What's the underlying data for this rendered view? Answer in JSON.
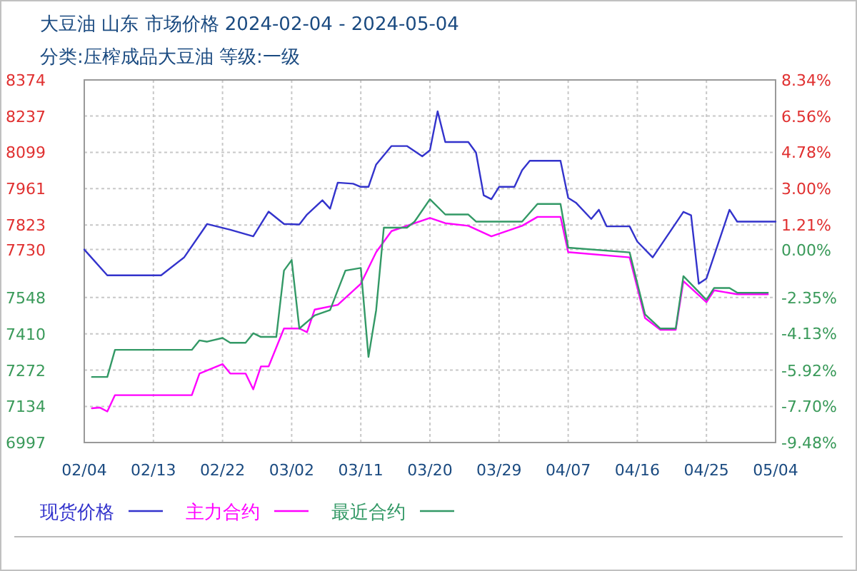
{
  "chart_data": {
    "type": "line",
    "title": "大豆油 山东 市场价格 2024-02-04 - 2024-05-04",
    "subtitle": "分类:压榨成品大豆油 等级:一级",
    "xlim": [
      "2024-02-04",
      "2024-05-04"
    ],
    "xticks": [
      {
        "value": "2024-02-04",
        "label": "02/04"
      },
      {
        "value": "2024-02-13",
        "label": "02/13"
      },
      {
        "value": "2024-02-22",
        "label": "02/22"
      },
      {
        "value": "2024-03-02",
        "label": "03/02"
      },
      {
        "value": "2024-03-11",
        "label": "03/11"
      },
      {
        "value": "2024-03-20",
        "label": "03/20"
      },
      {
        "value": "2024-03-29",
        "label": "03/29"
      },
      {
        "value": "2024-04-07",
        "label": "04/07"
      },
      {
        "value": "2024-04-16",
        "label": "04/16"
      },
      {
        "value": "2024-04-25",
        "label": "04/25"
      },
      {
        "value": "2024-05-04",
        "label": "05/04"
      }
    ],
    "ylim": [
      6997,
      8374
    ],
    "yticks": [
      6997,
      7134,
      7272,
      7410,
      7548,
      7730,
      7823,
      7961,
      8099,
      8237,
      8374
    ],
    "y2lim": [
      -9.48,
      8.34
    ],
    "y2ticks": [
      {
        "value": -9.48,
        "label": "-9.48%"
      },
      {
        "value": -7.7,
        "label": "-7.70%"
      },
      {
        "value": -5.92,
        "label": "-5.92%"
      },
      {
        "value": -4.13,
        "label": "-4.13%"
      },
      {
        "value": -2.35,
        "label": "-2.35%"
      },
      {
        "value": 0,
        "label": "0.00%"
      },
      {
        "value": 1.21,
        "label": "1.21%"
      },
      {
        "value": 3.0,
        "label": "3.00%"
      },
      {
        "value": 4.78,
        "label": "4.78%"
      },
      {
        "value": 6.56,
        "label": "6.56%"
      },
      {
        "value": 8.34,
        "label": "8.34%"
      }
    ],
    "grid": true,
    "legend": "bottom",
    "series": [
      {
        "name": "现货价格",
        "color": "#3333cc",
        "x": [
          "2024-02-04",
          "2024-02-07",
          "2024-02-14",
          "2024-02-17",
          "2024-02-20",
          "2024-02-23",
          "2024-02-26",
          "2024-02-28",
          "2024-03-01",
          "2024-03-03",
          "2024-03-04",
          "2024-03-06",
          "2024-03-07",
          "2024-03-08",
          "2024-03-10",
          "2024-03-11",
          "2024-03-12",
          "2024-03-13",
          "2024-03-15",
          "2024-03-17",
          "2024-03-19",
          "2024-03-20",
          "2024-03-21",
          "2024-03-22",
          "2024-03-25",
          "2024-03-26",
          "2024-03-27",
          "2024-03-28",
          "2024-03-29",
          "2024-03-31",
          "2024-04-01",
          "2024-04-02",
          "2024-04-06",
          "2024-04-07",
          "2024-04-08",
          "2024-04-10",
          "2024-04-11",
          "2024-04-12",
          "2024-04-15",
          "2024-04-16",
          "2024-04-18",
          "2024-04-22",
          "2024-04-23",
          "2024-04-24",
          "2024-04-25",
          "2024-04-28",
          "2024-04-29",
          "2024-05-04"
        ],
        "values": [
          7730,
          7632,
          7632,
          7700,
          7827,
          7805,
          7780,
          7874,
          7827,
          7825,
          7863,
          7917,
          7885,
          7984,
          7980,
          7968,
          7968,
          8053,
          8123,
          8123,
          8084,
          8107,
          8255,
          8138,
          8138,
          8098,
          7936,
          7921,
          7968,
          7968,
          8031,
          8067,
          8067,
          7926,
          7908,
          7846,
          7881,
          7818,
          7818,
          7760,
          7700,
          7873,
          7860,
          7600,
          7620,
          7881,
          7836,
          7836
        ]
      },
      {
        "name": "主力合约",
        "color": "#ff00ff",
        "x": [
          "2024-02-05",
          "2024-02-06",
          "2024-02-07",
          "2024-02-08",
          "2024-02-18",
          "2024-02-19",
          "2024-02-22",
          "2024-02-23",
          "2024-02-25",
          "2024-02-26",
          "2024-02-27",
          "2024-02-28",
          "2024-03-01",
          "2024-03-03",
          "2024-03-04",
          "2024-03-05",
          "2024-03-08",
          "2024-03-11",
          "2024-03-13",
          "2024-03-15",
          "2024-03-20",
          "2024-03-22",
          "2024-03-25",
          "2024-03-28",
          "2024-04-01",
          "2024-04-03",
          "2024-04-06",
          "2024-04-07",
          "2024-04-15",
          "2024-04-17",
          "2024-04-19",
          "2024-04-21",
          "2024-04-22",
          "2024-04-25",
          "2024-04-26",
          "2024-04-29",
          "2024-05-03"
        ],
        "values": [
          7127,
          7130,
          7115,
          7177,
          7177,
          7259,
          7295,
          7259,
          7259,
          7199,
          7286,
          7286,
          7430,
          7430,
          7416,
          7502,
          7520,
          7600,
          7720,
          7800,
          7850,
          7830,
          7820,
          7780,
          7820,
          7854,
          7854,
          7720,
          7700,
          7470,
          7425,
          7425,
          7610,
          7530,
          7575,
          7560,
          7560
        ]
      },
      {
        "name": "最近合约",
        "color": "#339966",
        "x": [
          "2024-02-05",
          "2024-02-07",
          "2024-02-08",
          "2024-02-18",
          "2024-02-19",
          "2024-02-20",
          "2024-02-22",
          "2024-02-23",
          "2024-02-25",
          "2024-02-26",
          "2024-02-27",
          "2024-02-29",
          "2024-03-01",
          "2024-03-02",
          "2024-03-03",
          "2024-03-05",
          "2024-03-07",
          "2024-03-09",
          "2024-03-11",
          "2024-03-12",
          "2024-03-13",
          "2024-03-14",
          "2024-03-17",
          "2024-03-18",
          "2024-03-20",
          "2024-03-22",
          "2024-03-25",
          "2024-03-26",
          "2024-04-01",
          "2024-04-03",
          "2024-04-06",
          "2024-04-07",
          "2024-04-15",
          "2024-04-17",
          "2024-04-19",
          "2024-04-21",
          "2024-04-22",
          "2024-04-25",
          "2024-04-26",
          "2024-04-28",
          "2024-04-29",
          "2024-05-03"
        ],
        "values": [
          7246,
          7246,
          7349,
          7349,
          7385,
          7380,
          7394,
          7376,
          7376,
          7412,
          7398,
          7398,
          7650,
          7690,
          7430,
          7480,
          7500,
          7650,
          7660,
          7322,
          7500,
          7813,
          7813,
          7836,
          7921,
          7863,
          7863,
          7836,
          7836,
          7903,
          7903,
          7737,
          7719,
          7484,
          7430,
          7430,
          7629,
          7539,
          7584,
          7584,
          7566,
          7566
        ]
      }
    ]
  }
}
